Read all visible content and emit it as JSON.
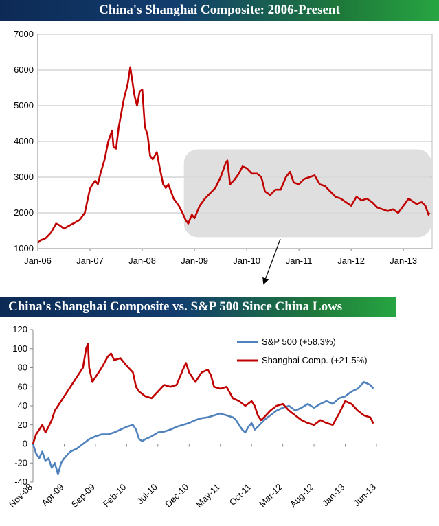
{
  "chart_data": [
    {
      "type": "line",
      "title": "China's Shanghai Composite: 2006-Present",
      "xlabel": "",
      "ylabel": "",
      "x_ticks": [
        "Jan-06",
        "Jan-07",
        "Jan-08",
        "Jan-09",
        "Jan-10",
        "Jan-11",
        "Jan-12",
        "Jan-13"
      ],
      "y_ticks": [
        "1000",
        "2000",
        "3000",
        "4000",
        "5000",
        "6000",
        "7000"
      ],
      "ylim": [
        1000,
        7000
      ],
      "xlim_years": [
        2006.0,
        2013.55
      ],
      "grid": true,
      "annotation": "shaded region Nov-08 to Jun-13 with arrow pointing to second chart",
      "series": [
        {
          "name": "Shanghai Composite",
          "color": "#c00000",
          "points": [
            [
              2006.0,
              1160
            ],
            [
              2006.05,
              1230
            ],
            [
              2006.15,
              1290
            ],
            [
              2006.25,
              1440
            ],
            [
              2006.35,
              1700
            ],
            [
              2006.42,
              1650
            ],
            [
              2006.5,
              1560
            ],
            [
              2006.6,
              1640
            ],
            [
              2006.7,
              1720
            ],
            [
              2006.8,
              1800
            ],
            [
              2006.9,
              2000
            ],
            [
              2007.0,
              2680
            ],
            [
              2007.05,
              2800
            ],
            [
              2007.1,
              2900
            ],
            [
              2007.15,
              2800
            ],
            [
              2007.2,
              3100
            ],
            [
              2007.28,
              3500
            ],
            [
              2007.35,
              4000
            ],
            [
              2007.42,
              4300
            ],
            [
              2007.45,
              3850
            ],
            [
              2007.5,
              3800
            ],
            [
              2007.55,
              4400
            ],
            [
              2007.6,
              4800
            ],
            [
              2007.65,
              5200
            ],
            [
              2007.72,
              5600
            ],
            [
              2007.77,
              6080
            ],
            [
              2007.8,
              5800
            ],
            [
              2007.85,
              5300
            ],
            [
              2007.9,
              5000
            ],
            [
              2007.95,
              5400
            ],
            [
              2008.0,
              5450
            ],
            [
              2008.05,
              4400
            ],
            [
              2008.1,
              4200
            ],
            [
              2008.15,
              3600
            ],
            [
              2008.2,
              3500
            ],
            [
              2008.28,
              3700
            ],
            [
              2008.33,
              3300
            ],
            [
              2008.4,
              2800
            ],
            [
              2008.45,
              2700
            ],
            [
              2008.5,
              2800
            ],
            [
              2008.6,
              2400
            ],
            [
              2008.7,
              2200
            ],
            [
              2008.77,
              2000
            ],
            [
              2008.83,
              1800
            ],
            [
              2008.88,
              1700
            ],
            [
              2008.95,
              1950
            ],
            [
              2009.0,
              1850
            ],
            [
              2009.1,
              2200
            ],
            [
              2009.2,
              2400
            ],
            [
              2009.3,
              2550
            ],
            [
              2009.4,
              2700
            ],
            [
              2009.5,
              3000
            ],
            [
              2009.6,
              3400
            ],
            [
              2009.63,
              3470
            ],
            [
              2009.68,
              2800
            ],
            [
              2009.75,
              2900
            ],
            [
              2009.85,
              3100
            ],
            [
              2009.92,
              3300
            ],
            [
              2010.0,
              3250
            ],
            [
              2010.1,
              3100
            ],
            [
              2010.2,
              3100
            ],
            [
              2010.28,
              3000
            ],
            [
              2010.35,
              2600
            ],
            [
              2010.45,
              2500
            ],
            [
              2010.55,
              2650
            ],
            [
              2010.65,
              2650
            ],
            [
              2010.75,
              3000
            ],
            [
              2010.83,
              3150
            ],
            [
              2010.9,
              2850
            ],
            [
              2011.0,
              2800
            ],
            [
              2011.1,
              2950
            ],
            [
              2011.2,
              3000
            ],
            [
              2011.3,
              3050
            ],
            [
              2011.4,
              2800
            ],
            [
              2011.5,
              2750
            ],
            [
              2011.6,
              2600
            ],
            [
              2011.7,
              2450
            ],
            [
              2011.8,
              2400
            ],
            [
              2011.9,
              2300
            ],
            [
              2012.0,
              2200
            ],
            [
              2012.1,
              2450
            ],
            [
              2012.2,
              2350
            ],
            [
              2012.3,
              2400
            ],
            [
              2012.4,
              2300
            ],
            [
              2012.5,
              2150
            ],
            [
              2012.6,
              2100
            ],
            [
              2012.7,
              2050
            ],
            [
              2012.8,
              2100
            ],
            [
              2012.9,
              2000
            ],
            [
              2013.0,
              2200
            ],
            [
              2013.1,
              2400
            ],
            [
              2013.15,
              2350
            ],
            [
              2013.25,
              2250
            ],
            [
              2013.35,
              2300
            ],
            [
              2013.42,
              2200
            ],
            [
              2013.48,
              1950
            ],
            [
              2013.5,
              2000
            ]
          ]
        }
      ]
    },
    {
      "type": "line",
      "title": "China's Shanghai Composite vs. S&P 500 Since China Lows",
      "xlabel": "",
      "ylabel": "",
      "categories": [
        "Nov-08",
        "Apr-09",
        "Sep-09",
        "Feb-10",
        "Jul-10",
        "Dec-10",
        "May-11",
        "Oct-11",
        "Mar-12",
        "Aug-12",
        "Jan-13",
        "Jun-13"
      ],
      "y_ticks": [
        "120",
        "100",
        "80",
        "60",
        "40",
        "20",
        "0",
        "-20",
        "-40"
      ],
      "ylim": [
        -40,
        120
      ],
      "xlim_months": [
        0,
        55
      ],
      "grid": false,
      "legend_position": "top-right",
      "series": [
        {
          "name": "S&P 500 (+58.3%)",
          "color": "#4f81bd",
          "points": [
            [
              0,
              0
            ],
            [
              0.5,
              -10
            ],
            [
              1,
              -15
            ],
            [
              1.5,
              -8
            ],
            [
              2,
              -18
            ],
            [
              2.5,
              -15
            ],
            [
              3,
              -25
            ],
            [
              3.5,
              -20
            ],
            [
              4,
              -32
            ],
            [
              4.5,
              -20
            ],
            [
              5,
              -15
            ],
            [
              6,
              -8
            ],
            [
              7,
              -5
            ],
            [
              8,
              0
            ],
            [
              9,
              5
            ],
            [
              10,
              8
            ],
            [
              11,
              10
            ],
            [
              12,
              10
            ],
            [
              13,
              12
            ],
            [
              14,
              15
            ],
            [
              15,
              18
            ],
            [
              16,
              20
            ],
            [
              16.5,
              15
            ],
            [
              17,
              5
            ],
            [
              17.5,
              3
            ],
            [
              18,
              5
            ],
            [
              19,
              8
            ],
            [
              20,
              12
            ],
            [
              21,
              13
            ],
            [
              22,
              15
            ],
            [
              23,
              18
            ],
            [
              24,
              20
            ],
            [
              25,
              22
            ],
            [
              26,
              25
            ],
            [
              27,
              27
            ],
            [
              28,
              28
            ],
            [
              29,
              30
            ],
            [
              30,
              32
            ],
            [
              31,
              30
            ],
            [
              32,
              28
            ],
            [
              32.5,
              25
            ],
            [
              33,
              20
            ],
            [
              33.5,
              15
            ],
            [
              34,
              12
            ],
            [
              34.5,
              18
            ],
            [
              35,
              22
            ],
            [
              35.5,
              15
            ],
            [
              36,
              18
            ],
            [
              37,
              25
            ],
            [
              38,
              30
            ],
            [
              39,
              35
            ],
            [
              40,
              38
            ],
            [
              41,
              40
            ],
            [
              42,
              35
            ],
            [
              43,
              38
            ],
            [
              44,
              42
            ],
            [
              45,
              38
            ],
            [
              46,
              42
            ],
            [
              47,
              45
            ],
            [
              48,
              42
            ],
            [
              49,
              48
            ],
            [
              50,
              50
            ],
            [
              51,
              55
            ],
            [
              52,
              58
            ],
            [
              53,
              65
            ],
            [
              54,
              62
            ],
            [
              54.5,
              58.3
            ]
          ]
        },
        {
          "name": "Shanghai Comp. (+21.5%)",
          "color": "#c00000",
          "points": [
            [
              0,
              0
            ],
            [
              0.5,
              10
            ],
            [
              1,
              15
            ],
            [
              1.5,
              20
            ],
            [
              2,
              12
            ],
            [
              2.5,
              18
            ],
            [
              3,
              25
            ],
            [
              3.5,
              35
            ],
            [
              4,
              40
            ],
            [
              5,
              50
            ],
            [
              6,
              60
            ],
            [
              7,
              70
            ],
            [
              8,
              80
            ],
            [
              8.5,
              100
            ],
            [
              8.8,
              105
            ],
            [
              9,
              80
            ],
            [
              9.5,
              65
            ],
            [
              10,
              70
            ],
            [
              11,
              80
            ],
            [
              12,
              92
            ],
            [
              12.5,
              95
            ],
            [
              13,
              88
            ],
            [
              14,
              90
            ],
            [
              15,
              82
            ],
            [
              16,
              75
            ],
            [
              16.5,
              60
            ],
            [
              17,
              55
            ],
            [
              18,
              50
            ],
            [
              19,
              48
            ],
            [
              20,
              55
            ],
            [
              21,
              62
            ],
            [
              22,
              60
            ],
            [
              23,
              62
            ],
            [
              24,
              78
            ],
            [
              24.5,
              85
            ],
            [
              25,
              75
            ],
            [
              26,
              65
            ],
            [
              27,
              75
            ],
            [
              28,
              78
            ],
            [
              28.5,
              72
            ],
            [
              29,
              60
            ],
            [
              30,
              58
            ],
            [
              31,
              60
            ],
            [
              32,
              48
            ],
            [
              33,
              45
            ],
            [
              34,
              40
            ],
            [
              35,
              45
            ],
            [
              35.5,
              40
            ],
            [
              36,
              30
            ],
            [
              36.5,
              25
            ],
            [
              37,
              28
            ],
            [
              38,
              35
            ],
            [
              39,
              40
            ],
            [
              40,
              42
            ],
            [
              41,
              35
            ],
            [
              42,
              30
            ],
            [
              43,
              25
            ],
            [
              44,
              22
            ],
            [
              45,
              20
            ],
            [
              46,
              25
            ],
            [
              47,
              22
            ],
            [
              48,
              20
            ],
            [
              49,
              32
            ],
            [
              50,
              45
            ],
            [
              51,
              42
            ],
            [
              52,
              35
            ],
            [
              53,
              30
            ],
            [
              54,
              28
            ],
            [
              54.5,
              21.5
            ]
          ]
        }
      ]
    }
  ]
}
